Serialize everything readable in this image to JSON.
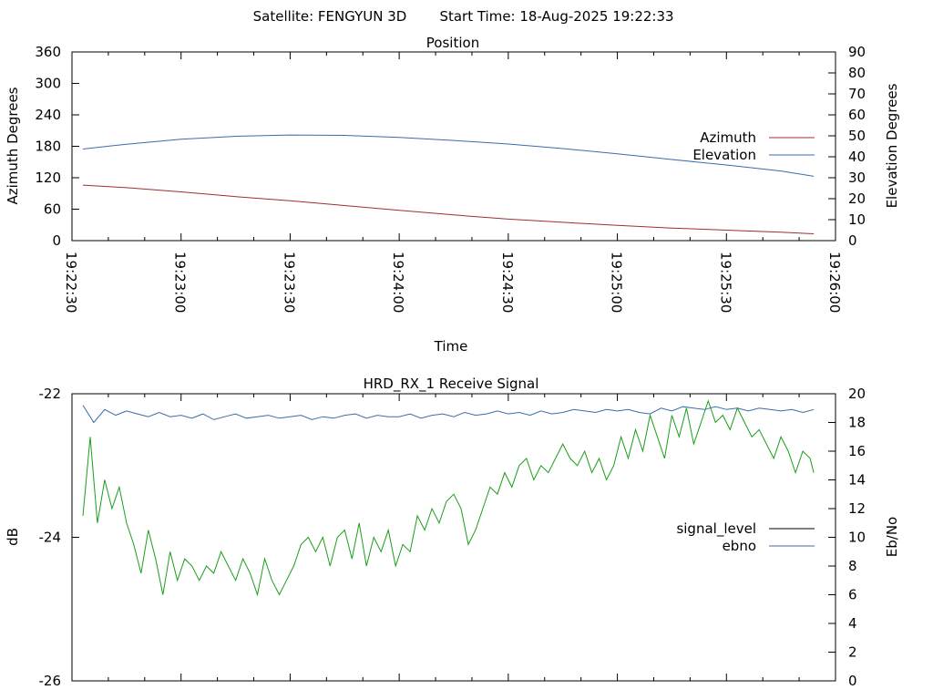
{
  "header": {
    "satellite": "Satellite: FENGYUN 3D",
    "start_time": "Start Time: 18-Aug-2025 19:22:33"
  },
  "chart_data": [
    {
      "type": "line",
      "title": "Position",
      "xlabel": "Time",
      "ylabel": "Azimuth Degrees",
      "y2label": "Elevation Degrees",
      "xlim": [
        "19:22:30",
        "19:26:00"
      ],
      "x_ticks": [
        "19:22:30",
        "19:23:00",
        "19:23:30",
        "19:24:00",
        "19:24:30",
        "19:25:00",
        "19:25:30",
        "19:26:00"
      ],
      "ylim": [
        0,
        360
      ],
      "y_ticks": [
        0,
        60,
        120,
        180,
        240,
        300,
        360
      ],
      "y2lim": [
        0,
        90
      ],
      "y2_ticks": [
        0,
        10,
        20,
        30,
        40,
        50,
        60,
        70,
        80,
        90
      ],
      "legend_position": "right",
      "series": [
        {
          "name": "Azimuth",
          "axis": "y",
          "color": "#a0302e",
          "x": [
            "19:22:33",
            "19:22:45",
            "19:23:00",
            "19:23:15",
            "19:23:30",
            "19:23:45",
            "19:24:00",
            "19:24:15",
            "19:24:30",
            "19:24:45",
            "19:25:00",
            "19:25:15",
            "19:25:30",
            "19:25:45",
            "19:25:54"
          ],
          "values": [
            106,
            101,
            93,
            84,
            76,
            67,
            58,
            49,
            41,
            35,
            29,
            24,
            20,
            16,
            13
          ]
        },
        {
          "name": "Elevation",
          "axis": "y2",
          "color": "#3a6ea8",
          "x": [
            "19:22:33",
            "19:22:45",
            "19:23:00",
            "19:23:15",
            "19:23:30",
            "19:23:45",
            "19:24:00",
            "19:24:15",
            "19:24:30",
            "19:24:45",
            "19:25:00",
            "19:25:15",
            "19:25:30",
            "19:25:45",
            "19:25:54"
          ],
          "values": [
            43.7,
            46.0,
            48.4,
            49.8,
            50.4,
            50.2,
            49.2,
            47.8,
            46.1,
            43.9,
            41.4,
            38.7,
            36.1,
            33.2,
            30.7
          ]
        }
      ]
    },
    {
      "type": "line",
      "title": "HRD_RX_1 Receive Signal",
      "ylabel": "dB",
      "y2label": "Eb/No",
      "xlim": [
        "19:22:30",
        "19:26:00"
      ],
      "ylim": [
        -26,
        -22
      ],
      "y_ticks": [
        -26,
        -24,
        -22
      ],
      "y2lim": [
        0,
        20
      ],
      "y2_ticks": [
        0,
        2,
        4,
        6,
        8,
        10,
        12,
        14,
        16,
        18,
        20
      ],
      "legend_position": "right",
      "series": [
        {
          "name": "signal_level",
          "axis": "y",
          "color": "#1a9e1a",
          "x": [
            "19:22:33",
            "19:22:35",
            "19:22:37",
            "19:22:39",
            "19:22:41",
            "19:22:43",
            "19:22:45",
            "19:22:47",
            "19:22:49",
            "19:22:51",
            "19:22:53",
            "19:22:55",
            "19:22:57",
            "19:22:59",
            "19:23:01",
            "19:23:03",
            "19:23:05",
            "19:23:07",
            "19:23:09",
            "19:23:11",
            "19:23:13",
            "19:23:15",
            "19:23:17",
            "19:23:19",
            "19:23:21",
            "19:23:23",
            "19:23:25",
            "19:23:27",
            "19:23:29",
            "19:23:31",
            "19:23:33",
            "19:23:35",
            "19:23:37",
            "19:23:39",
            "19:23:41",
            "19:23:43",
            "19:23:45",
            "19:23:47",
            "19:23:49",
            "19:23:51",
            "19:23:53",
            "19:23:55",
            "19:23:57",
            "19:23:59",
            "19:24:01",
            "19:24:03",
            "19:24:05",
            "19:24:07",
            "19:24:09",
            "19:24:11",
            "19:24:13",
            "19:24:15",
            "19:24:17",
            "19:24:19",
            "19:24:21",
            "19:24:23",
            "19:24:25",
            "19:24:27",
            "19:24:29",
            "19:24:31",
            "19:24:33",
            "19:24:35",
            "19:24:37",
            "19:24:39",
            "19:24:41",
            "19:24:43",
            "19:24:45",
            "19:24:47",
            "19:24:49",
            "19:24:51",
            "19:24:53",
            "19:24:55",
            "19:24:57",
            "19:24:59",
            "19:25:01",
            "19:25:03",
            "19:25:05",
            "19:25:07",
            "19:25:09",
            "19:25:11",
            "19:25:13",
            "19:25:15",
            "19:25:17",
            "19:25:19",
            "19:25:21",
            "19:25:23",
            "19:25:25",
            "19:25:27",
            "19:25:29",
            "19:25:31",
            "19:25:33",
            "19:25:35",
            "19:25:37",
            "19:25:39",
            "19:25:41",
            "19:25:43",
            "19:25:45",
            "19:25:47",
            "19:25:49",
            "19:25:51",
            "19:25:53",
            "19:25:54"
          ],
          "values": [
            -23.7,
            -22.6,
            -23.8,
            -23.2,
            -23.6,
            -23.3,
            -23.8,
            -24.1,
            -24.5,
            -23.9,
            -24.3,
            -24.8,
            -24.2,
            -24.6,
            -24.3,
            -24.4,
            -24.6,
            -24.4,
            -24.5,
            -24.2,
            -24.4,
            -24.6,
            -24.3,
            -24.5,
            -24.8,
            -24.3,
            -24.6,
            -24.8,
            -24.6,
            -24.4,
            -24.1,
            -24.0,
            -24.2,
            -24.0,
            -24.4,
            -24.0,
            -23.9,
            -24.3,
            -23.8,
            -24.4,
            -24.0,
            -24.2,
            -23.9,
            -24.4,
            -24.1,
            -24.2,
            -23.7,
            -23.9,
            -23.6,
            -23.8,
            -23.5,
            -23.4,
            -23.6,
            -24.1,
            -23.9,
            -23.6,
            -23.3,
            -23.4,
            -23.1,
            -23.3,
            -23.0,
            -22.9,
            -23.2,
            -23.0,
            -23.1,
            -22.9,
            -22.7,
            -22.9,
            -23.0,
            -22.8,
            -23.1,
            -22.9,
            -23.2,
            -23.0,
            -22.6,
            -22.9,
            -22.5,
            -22.8,
            -22.3,
            -22.6,
            -22.9,
            -22.3,
            -22.6,
            -22.2,
            -22.7,
            -22.4,
            -22.1,
            -22.4,
            -22.3,
            -22.5,
            -22.2,
            -22.4,
            -22.6,
            -22.5,
            -22.7,
            -22.9,
            -22.6,
            -22.8,
            -23.1,
            -22.8,
            -22.9,
            -23.1
          ]
        },
        {
          "name": "ebno",
          "axis": "y2",
          "color": "#3a6ea8",
          "x": [
            "19:22:33",
            "19:22:36",
            "19:22:39",
            "19:22:42",
            "19:22:45",
            "19:22:48",
            "19:22:51",
            "19:22:54",
            "19:22:57",
            "19:23:00",
            "19:23:03",
            "19:23:06",
            "19:23:09",
            "19:23:12",
            "19:23:15",
            "19:23:18",
            "19:23:21",
            "19:23:24",
            "19:23:27",
            "19:23:30",
            "19:23:33",
            "19:23:36",
            "19:23:39",
            "19:23:42",
            "19:23:45",
            "19:23:48",
            "19:23:51",
            "19:23:54",
            "19:23:57",
            "19:24:00",
            "19:24:03",
            "19:24:06",
            "19:24:09",
            "19:24:12",
            "19:24:15",
            "19:24:18",
            "19:24:21",
            "19:24:24",
            "19:24:27",
            "19:24:30",
            "19:24:33",
            "19:24:36",
            "19:24:39",
            "19:24:42",
            "19:24:45",
            "19:24:48",
            "19:24:51",
            "19:24:54",
            "19:24:57",
            "19:25:00",
            "19:25:03",
            "19:25:06",
            "19:25:09",
            "19:25:12",
            "19:25:15",
            "19:25:18",
            "19:25:21",
            "19:25:24",
            "19:25:27",
            "19:25:30",
            "19:25:33",
            "19:25:36",
            "19:25:39",
            "19:25:42",
            "19:25:45",
            "19:25:48",
            "19:25:51",
            "19:25:54"
          ],
          "values": [
            19.2,
            18.0,
            18.9,
            18.5,
            18.8,
            18.6,
            18.4,
            18.7,
            18.4,
            18.5,
            18.3,
            18.6,
            18.2,
            18.4,
            18.6,
            18.3,
            18.4,
            18.5,
            18.3,
            18.4,
            18.5,
            18.2,
            18.4,
            18.3,
            18.5,
            18.6,
            18.3,
            18.5,
            18.4,
            18.4,
            18.6,
            18.3,
            18.5,
            18.6,
            18.4,
            18.7,
            18.5,
            18.6,
            18.8,
            18.6,
            18.7,
            18.5,
            18.8,
            18.6,
            18.7,
            18.9,
            18.8,
            18.7,
            18.9,
            18.8,
            18.9,
            18.7,
            18.6,
            19.0,
            18.8,
            19.1,
            19.0,
            18.9,
            19.1,
            18.9,
            19.0,
            18.8,
            19.0,
            18.9,
            18.8,
            18.9,
            18.7,
            18.9
          ]
        }
      ]
    }
  ]
}
